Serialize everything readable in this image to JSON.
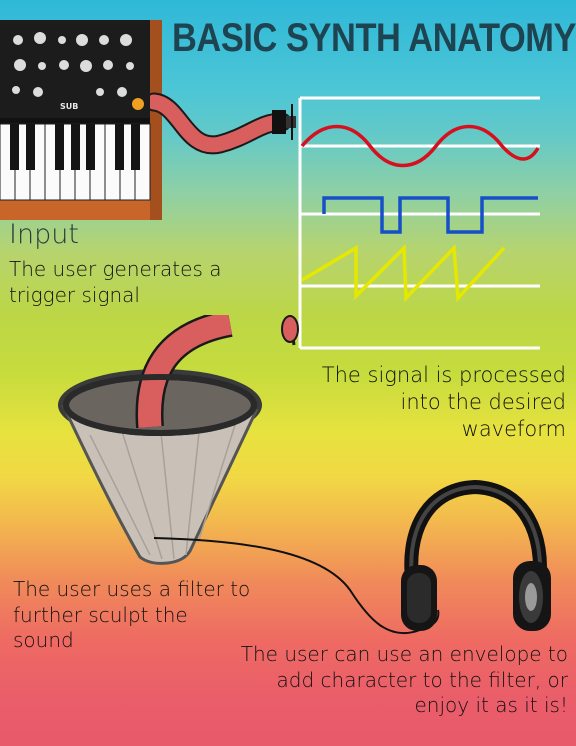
{
  "title": "BASIC SYNTH ANATOMY",
  "input": {
    "heading": "Input",
    "description": "The user generates a trigger signal"
  },
  "waveform": {
    "description": "The signal is processed into the desired waveform"
  },
  "filter": {
    "description": "The user uses a filter to further sculpt the sound"
  },
  "envelope": {
    "description": "The user can use an envelope to add character to the filter, or enjoy it as it is!"
  },
  "synth_brand": "SUB",
  "colors": {
    "title": "#1f4451",
    "cable": "#d95f5f",
    "sine_wave": "#d6101e",
    "square_wave": "#1550c8",
    "saw_wave": "#e6e800",
    "frame": "#ffffff"
  },
  "icons": [
    "synthesizer-keyboard-icon",
    "patch-cable-icon",
    "coffee-filter-icon",
    "headphones-icon"
  ]
}
